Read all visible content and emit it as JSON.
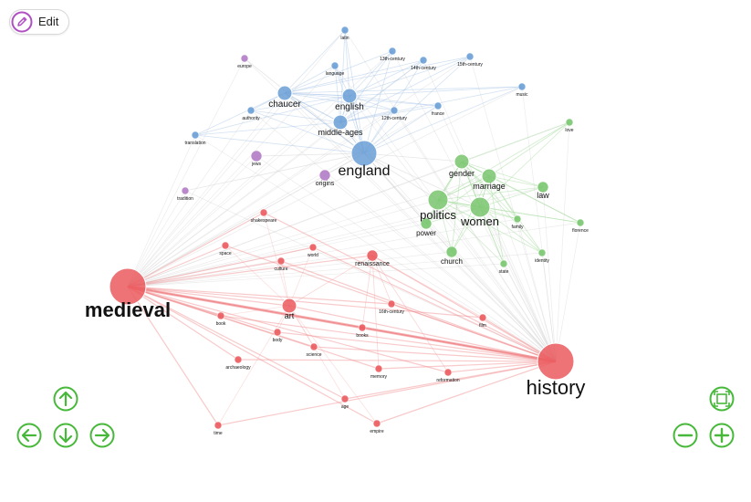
{
  "toolbar": {
    "edit_label": "Edit",
    "edit_icon": "pencil-icon"
  },
  "colors": {
    "blue": "#6a9fd6",
    "green": "#79c66f",
    "red": "#eb5a5e",
    "purple": "#b27cc6",
    "nav": "#47b83a",
    "edit": "#b04fc4"
  },
  "navigation": {
    "pan_up_icon": "arrow-up-icon",
    "pan_left_icon": "arrow-left-icon",
    "pan_down_icon": "arrow-down-icon",
    "pan_right_icon": "arrow-right-icon",
    "fit_icon": "fit-screen-icon",
    "zoom_out_icon": "minus-icon",
    "zoom_in_icon": "plus-icon"
  },
  "graph": {
    "nodes": [
      {
        "id": "medieval",
        "label": "medieval",
        "group": "red",
        "weight": 10
      },
      {
        "id": "history",
        "label": "history",
        "group": "red",
        "weight": 10
      },
      {
        "id": "england",
        "label": "england",
        "group": "blue",
        "weight": 6
      },
      {
        "id": "politics",
        "label": "politics",
        "group": "green",
        "weight": 5
      },
      {
        "id": "women",
        "label": "women",
        "group": "green",
        "weight": 5
      },
      {
        "id": "chaucer",
        "label": "chaucer",
        "group": "blue",
        "weight": 3
      },
      {
        "id": "english",
        "label": "english",
        "group": "blue",
        "weight": 3
      },
      {
        "id": "middle-ages",
        "label": "middle-ages",
        "group": "blue",
        "weight": 3
      },
      {
        "id": "gender",
        "label": "gender",
        "group": "green",
        "weight": 3
      },
      {
        "id": "marriage",
        "label": "marriage",
        "group": "green",
        "weight": 3
      },
      {
        "id": "law",
        "label": "law",
        "group": "green",
        "weight": 2
      },
      {
        "id": "power",
        "label": "power",
        "group": "green",
        "weight": 2
      },
      {
        "id": "church",
        "label": "church",
        "group": "green",
        "weight": 2
      },
      {
        "id": "art",
        "label": "art",
        "group": "red",
        "weight": 3
      },
      {
        "id": "renaissance",
        "label": "renaissance",
        "group": "red",
        "weight": 2
      },
      {
        "id": "origins",
        "label": "origins",
        "group": "purple",
        "weight": 2
      },
      {
        "id": "jews",
        "label": "jews",
        "group": "purple",
        "weight": 2
      },
      {
        "id": "latin",
        "label": "latin",
        "group": "blue",
        "weight": 1
      },
      {
        "id": "language",
        "label": "language",
        "group": "blue",
        "weight": 1
      },
      {
        "id": "13th-century",
        "label": "13th-century",
        "group": "blue",
        "weight": 1
      },
      {
        "id": "14th-century",
        "label": "14th-century",
        "group": "blue",
        "weight": 1
      },
      {
        "id": "15th-century",
        "label": "15th-century",
        "group": "blue",
        "weight": 1
      },
      {
        "id": "music",
        "label": "music",
        "group": "blue",
        "weight": 1
      },
      {
        "id": "12th-century",
        "label": "12th-century",
        "group": "blue",
        "weight": 1
      },
      {
        "id": "france",
        "label": "france",
        "group": "blue",
        "weight": 1
      },
      {
        "id": "authority",
        "label": "authority",
        "group": "blue",
        "weight": 1
      },
      {
        "id": "translation",
        "label": "translation",
        "group": "blue",
        "weight": 1
      },
      {
        "id": "europe",
        "label": "europe",
        "group": "purple",
        "weight": 1
      },
      {
        "id": "tradition",
        "label": "tradition",
        "group": "purple",
        "weight": 1
      },
      {
        "id": "love",
        "label": "love",
        "group": "green",
        "weight": 1
      },
      {
        "id": "family",
        "label": "family",
        "group": "green",
        "weight": 1
      },
      {
        "id": "florence",
        "label": "florence",
        "group": "green",
        "weight": 1
      },
      {
        "id": "identity",
        "label": "identity",
        "group": "green",
        "weight": 1
      },
      {
        "id": "state",
        "label": "state",
        "group": "green",
        "weight": 1
      },
      {
        "id": "shakespeare",
        "label": "shakespeare",
        "group": "red",
        "weight": 1
      },
      {
        "id": "space",
        "label": "space",
        "group": "red",
        "weight": 1
      },
      {
        "id": "world",
        "label": "world",
        "group": "red",
        "weight": 1
      },
      {
        "id": "culture",
        "label": "culture",
        "group": "red",
        "weight": 1
      },
      {
        "id": "16th-century",
        "label": "16th-century",
        "group": "red",
        "weight": 1
      },
      {
        "id": "book",
        "label": "book",
        "group": "red",
        "weight": 1
      },
      {
        "id": "body",
        "label": "body",
        "group": "red",
        "weight": 1
      },
      {
        "id": "books",
        "label": "books",
        "group": "red",
        "weight": 1
      },
      {
        "id": "science",
        "label": "science",
        "group": "red",
        "weight": 1
      },
      {
        "id": "archaeology",
        "label": "archaeology",
        "group": "red",
        "weight": 1
      },
      {
        "id": "memory",
        "label": "memory",
        "group": "red",
        "weight": 1
      },
      {
        "id": "reformation",
        "label": "reformation",
        "group": "red",
        "weight": 1
      },
      {
        "id": "age",
        "label": "age",
        "group": "red",
        "weight": 1
      },
      {
        "id": "empire",
        "label": "empire",
        "group": "red",
        "weight": 1
      },
      {
        "id": "time",
        "label": "time",
        "group": "red",
        "weight": 1
      },
      {
        "id": "film",
        "label": "film",
        "group": "red",
        "weight": 1
      }
    ]
  }
}
